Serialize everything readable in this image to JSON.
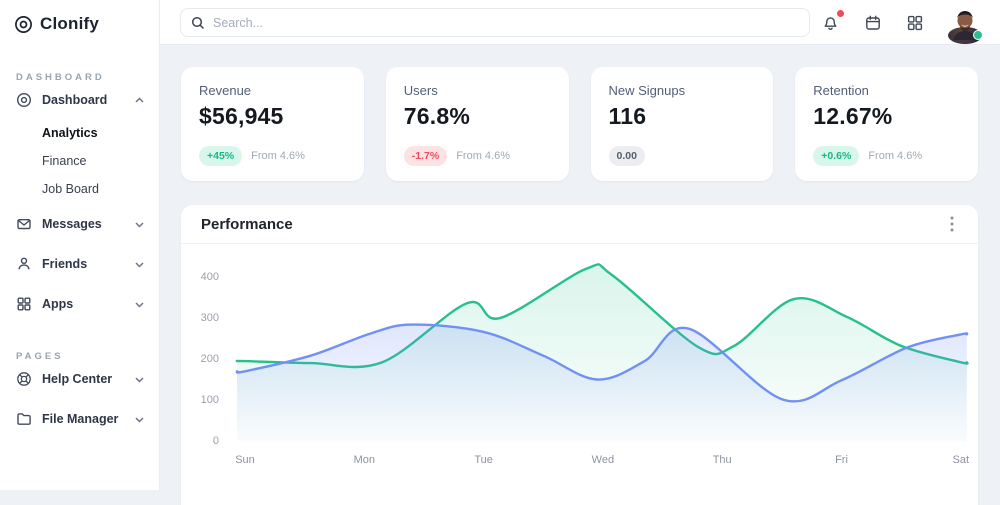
{
  "brand": {
    "name": "Clonify"
  },
  "sidebar": {
    "sections": [
      {
        "label": "DASHBOARD",
        "items": [
          {
            "label": "Dashboard",
            "icon": "dashboard-icon",
            "expanded": true,
            "children": [
              "Analytics",
              "Finance",
              "Job Board"
            ],
            "active_child": "Analytics"
          },
          {
            "label": "Messages",
            "icon": "envelope-icon"
          },
          {
            "label": "Friends",
            "icon": "person-icon"
          },
          {
            "label": "Apps",
            "icon": "grid-icon"
          }
        ]
      },
      {
        "label": "PAGES",
        "items": [
          {
            "label": "Help Center",
            "icon": "lifebuoy-icon"
          },
          {
            "label": "File Manager",
            "icon": "folder-icon"
          }
        ]
      }
    ]
  },
  "topbar": {
    "search_placeholder": "Search...",
    "icons": [
      "bell-icon",
      "calendar-icon",
      "apps-grid-icon",
      "avatar"
    ],
    "bell_has_notification": true,
    "avatar_status": "online"
  },
  "cards": [
    {
      "label": "Revenue",
      "value": "$56,945",
      "badge": "+45%",
      "badge_type": "positive",
      "note": "From 4.6%"
    },
    {
      "label": "Users",
      "value": "76.8%",
      "badge": "-1.7%",
      "badge_type": "negative",
      "note": "From 4.6%"
    },
    {
      "label": "New Signups",
      "value": "116",
      "badge": "0.00",
      "badge_type": "neutral",
      "note": ""
    },
    {
      "label": "Retention",
      "value": "12.67%",
      "badge": "+0.6%",
      "badge_type": "positive",
      "note": "From 4.6%"
    }
  ],
  "panel": {
    "title": "Performance"
  },
  "chart_data": {
    "type": "area",
    "title": "Performance",
    "x_labels": [
      "Sun",
      "Mon",
      "Tue",
      "Wed",
      "Thu",
      "Fri",
      "Sat"
    ],
    "y_ticks": [
      0,
      100,
      200,
      300,
      400
    ],
    "ylim": [
      0,
      440
    ],
    "grid": false,
    "legend": false,
    "smoothing": "spline",
    "series": [
      {
        "name": "series-green",
        "color": "#25c08c",
        "fill_top": "rgba(37,192,140,0.16)",
        "fill_bottom": "rgba(37,192,140,0.01)",
        "daily_values": {
          "Sun": 195,
          "Mon": 190,
          "Tue": 310,
          "Wed": 415,
          "Thu": 230,
          "Fri": 303,
          "Sat": 192
        },
        "points": [
          [
            0,
            195
          ],
          [
            0.55,
            190
          ],
          [
            1.15,
            192
          ],
          [
            1.86,
            336
          ],
          [
            2.14,
            300
          ],
          [
            2.86,
            420
          ],
          [
            3.08,
            404
          ],
          [
            3.8,
            229
          ],
          [
            4.1,
            232
          ],
          [
            4.6,
            346
          ],
          [
            5.05,
            302
          ],
          [
            5.5,
            232
          ],
          [
            6,
            192
          ]
        ]
      },
      {
        "name": "series-blue",
        "color": "#7191f2",
        "fill_top": "rgba(113,145,242,0.30)",
        "fill_bottom": "rgba(113,145,242,0.02)",
        "daily_values": {
          "Sun": 170,
          "Mon": 258,
          "Tue": 266,
          "Wed": 152,
          "Thu": 218,
          "Fri": 148,
          "Sat": 260
        },
        "points": [
          [
            0,
            170
          ],
          [
            0.55,
            208
          ],
          [
            1.05,
            262
          ],
          [
            1.4,
            284
          ],
          [
            2,
            266
          ],
          [
            2.5,
            208
          ],
          [
            2.95,
            150
          ],
          [
            3.35,
            195
          ],
          [
            3.72,
            274
          ],
          [
            4.5,
            102
          ],
          [
            5.0,
            148
          ],
          [
            5.55,
            228
          ],
          [
            6,
            260
          ]
        ]
      }
    ]
  },
  "colors": {
    "accent_green": "#25c08c",
    "accent_blue": "#7191f2",
    "positive_bg": "#d9f6eb",
    "positive_text": "#17b88a",
    "negative_bg": "#fde2e4",
    "negative_text": "#ee4b5e",
    "notification_red": "#f4485d",
    "status_green": "#2bbf8e",
    "page_bg": "#eef1f6"
  }
}
